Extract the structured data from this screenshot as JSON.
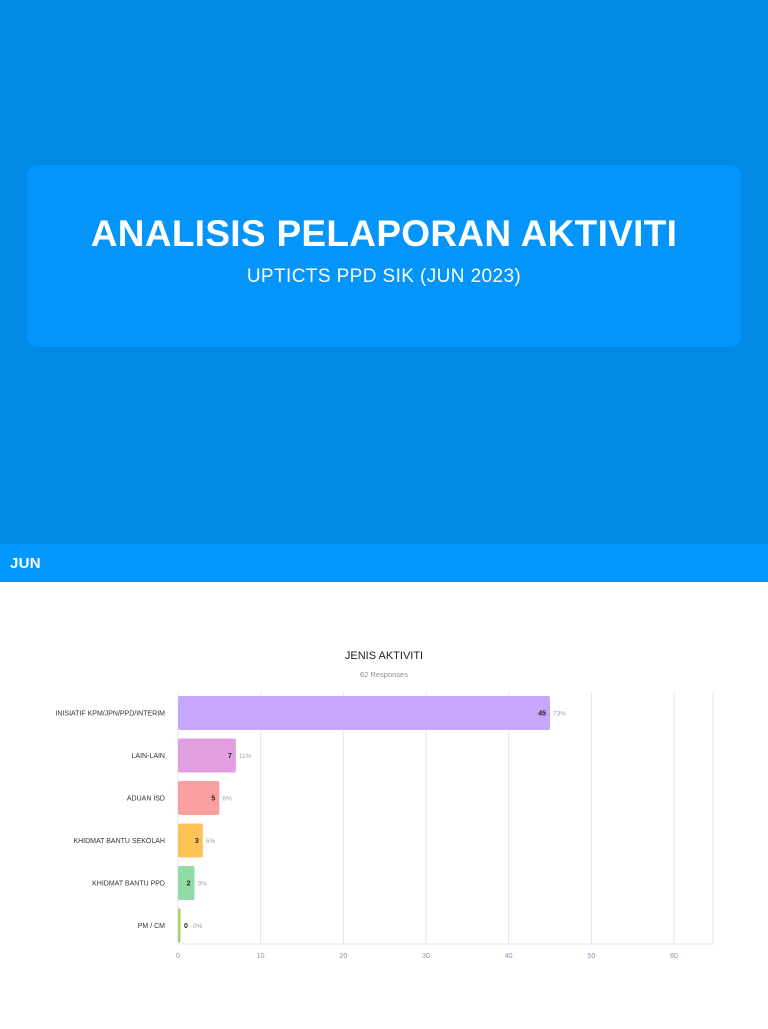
{
  "header": {
    "title": "ANALISIS PELAPORAN AKTIVITI",
    "subtitle": "UPTICTS PPD SIK (JUN 2023)"
  },
  "section": {
    "label": "JUN"
  },
  "colors": {
    "hero_bg": "#0289e6",
    "card_bg": "#0495fb",
    "band_bg": "#0398fd"
  },
  "chart_data": {
    "type": "bar",
    "orientation": "horizontal",
    "title": "JENIS AKTIVITI",
    "subtitle": "62 Responses",
    "categories": [
      "INISIATIF KPM/JPN/PPD/INTERIM",
      "LAIN-LAIN",
      "ADUAN ISD",
      "KHIDMAT BANTU SEKOLAH",
      "KHIDMAT BANTU PPD",
      "PM / CM"
    ],
    "values": [
      45,
      7,
      5,
      3,
      2,
      0
    ],
    "percent_labels": [
      "73%",
      "11%",
      "8%",
      "5%",
      "3%",
      "0%"
    ],
    "bar_colors": [
      "#c6a7fc",
      "#e19fe2",
      "#f99f9f",
      "#fdc357",
      "#93dba6",
      "#a3d36a"
    ],
    "xlim": [
      0,
      60
    ],
    "xticks": [
      0,
      10,
      20,
      30,
      40,
      50,
      60
    ],
    "grid": true
  }
}
